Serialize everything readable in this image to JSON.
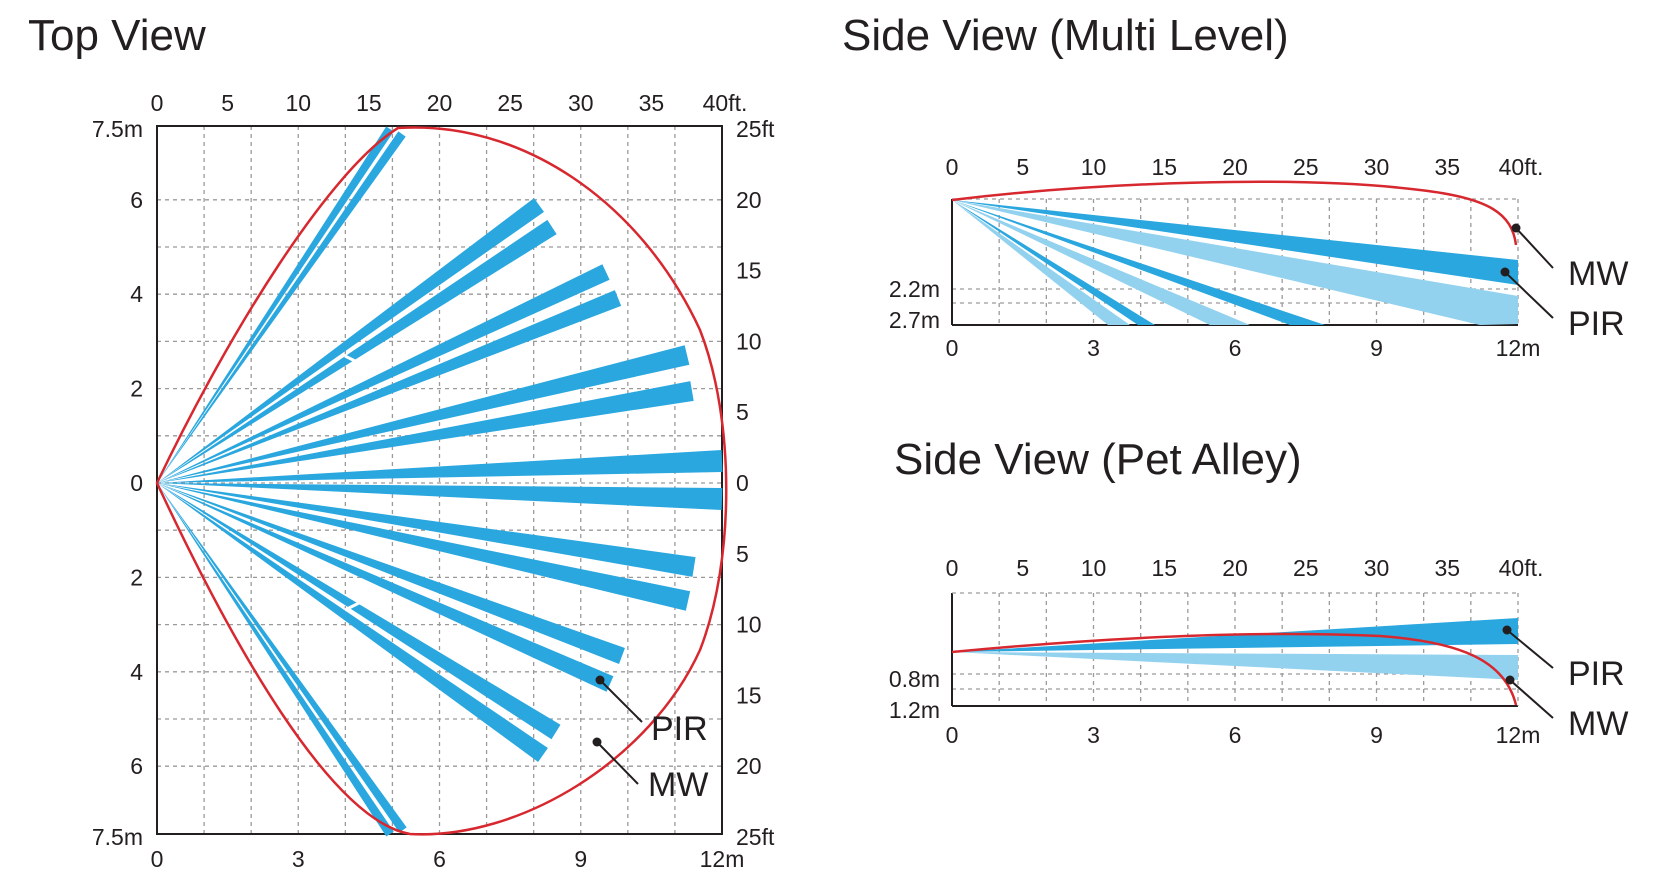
{
  "titles": {
    "top_view": "Top View",
    "side_multi": "Side View (Multi Level)",
    "side_pet": "Side View (Pet Alley)"
  },
  "colors": {
    "pir_beam": "#2aa7df",
    "pir_beam_light": "#93d2ef",
    "mw_boundary": "#d7282f",
    "grid": "#9a9a9a",
    "axis": "#231f20"
  },
  "top_view": {
    "x_ft_ticks": [
      "0",
      "5",
      "10",
      "15",
      "20",
      "25",
      "30",
      "35",
      "40ft."
    ],
    "x_m_ticks": [
      "0",
      "3",
      "6",
      "9",
      "12m"
    ],
    "y_m_ticks_left": [
      "7.5m",
      "6",
      "4",
      "2",
      "0",
      "2",
      "4",
      "6",
      "7.5m"
    ],
    "y_ft_ticks_right": [
      "25ft",
      "20",
      "15",
      "10",
      "5",
      "0",
      "5",
      "10",
      "15",
      "20",
      "25ft"
    ],
    "labels": {
      "pir": "PIR",
      "mw": "MW"
    }
  },
  "side_multi": {
    "x_ft_ticks": [
      "0",
      "5",
      "10",
      "15",
      "20",
      "25",
      "30",
      "35",
      "40ft."
    ],
    "x_m_ticks": [
      "0",
      "3",
      "6",
      "9",
      "12m"
    ],
    "y_ticks": [
      "2.2m",
      "2.7m"
    ],
    "labels": {
      "mw": "MW",
      "pir": "PIR"
    }
  },
  "side_pet": {
    "x_ft_ticks": [
      "0",
      "5",
      "10",
      "15",
      "20",
      "25",
      "30",
      "35",
      "40ft."
    ],
    "x_m_ticks": [
      "0",
      "3",
      "6",
      "9",
      "12m"
    ],
    "y_ticks": [
      "0.8m",
      "1.2m"
    ],
    "labels": {
      "pir": "PIR",
      "mw": "MW"
    }
  }
}
